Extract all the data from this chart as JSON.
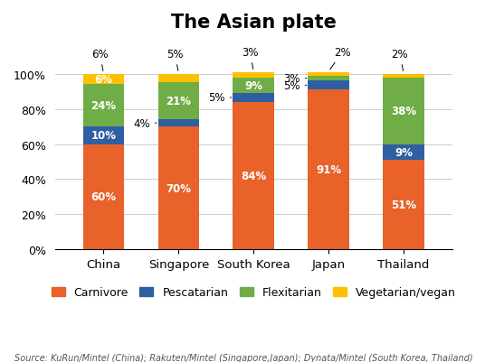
{
  "title": "The Asian plate",
  "categories": [
    "China",
    "Singapore",
    "South Korea",
    "Japan",
    "Thailand"
  ],
  "series": {
    "Carnivore": [
      60,
      70,
      84,
      91,
      51
    ],
    "Pescatarian": [
      10,
      4,
      5,
      5,
      9
    ],
    "Flexitarian": [
      24,
      21,
      9,
      3,
      38
    ],
    "Vegetarian/vegan": [
      6,
      5,
      3,
      2,
      2
    ]
  },
  "colors": {
    "Carnivore": "#E8622A",
    "Pescatarian": "#2E5FA3",
    "Flexitarian": "#70AD47",
    "Vegetarian/vegan": "#FFC000"
  },
  "bar_labels": {
    "Carnivore": [
      "60%",
      "70%",
      "84%",
      "91%",
      "51%"
    ],
    "Pescatarian": [
      "10%",
      "4%",
      "5%",
      "5%",
      "9%"
    ],
    "Flexitarian": [
      "24%",
      "21%",
      "9%",
      "3%",
      "38%"
    ],
    "Vegetarian/vegan": [
      "6%",
      "5%",
      "3%",
      "2%",
      "2%"
    ]
  },
  "inside_label_min_size": 6,
  "outside_labels": {
    "Singapore_Pescatarian": {
      "val": "4%",
      "bar_idx": 1,
      "series": "Pescatarian"
    },
    "SouthKorea_Pescatarian": {
      "val": "5%",
      "bar_idx": 2,
      "series": "Pescatarian"
    },
    "Japan_Pescatarian": {
      "val": "5%",
      "bar_idx": 3,
      "series": "Pescatarian"
    },
    "Japan_Flexitarian": {
      "val": "3%",
      "bar_idx": 3,
      "series": "Flexitarian"
    }
  },
  "source_text": "Source: KuRun/Mintel (China); Rakuten/Mintel (Singapore,Japan); Dynata/Mintel (South Korea, Thailand)",
  "ylim": [
    0,
    118
  ],
  "ylabel_ticks": [
    0,
    20,
    40,
    60,
    80,
    100
  ],
  "ylabel_tick_labels": [
    "0%",
    "20%",
    "40%",
    "60%",
    "80%",
    "100%"
  ],
  "title_fontsize": 15,
  "label_fontsize": 8.5,
  "legend_fontsize": 9,
  "source_fontsize": 7,
  "bar_width": 0.55
}
